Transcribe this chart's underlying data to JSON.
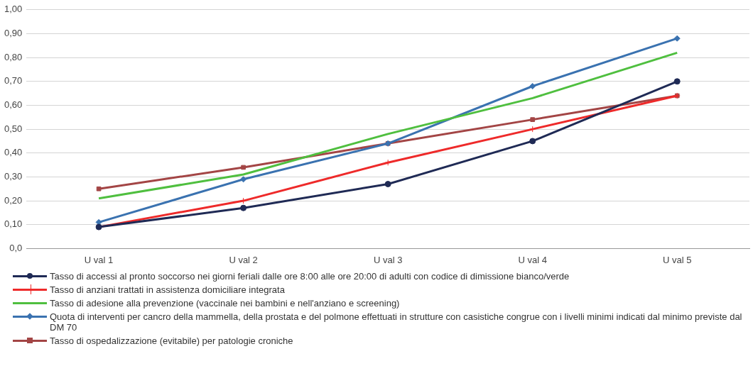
{
  "chart_data": {
    "type": "line",
    "categories": [
      "U val 1",
      "U val 2",
      "U val 3",
      "U val 4",
      "U val 5"
    ],
    "series": [
      {
        "name": "Tasso di accessi al pronto soccorso nei giorni feriali dalle ore 8:00 alle ore 20:00 di adulti con codice di dimissione bianco/verde",
        "color": "#1f2a55",
        "marker": "circle",
        "values": [
          0.09,
          0.17,
          0.27,
          0.45,
          0.7
        ]
      },
      {
        "name": "Tasso di anziani trattati in assistenza domiciliare integrata",
        "color": "#ee2a2a",
        "marker": "cross",
        "values": [
          0.09,
          0.2,
          0.36,
          0.5,
          0.64
        ]
      },
      {
        "name": "Tasso di adesione alla prevenzione (vaccinale nei bambini e nell'anziano e screening)",
        "color": "#4fbf3f",
        "marker": "none",
        "values": [
          0.21,
          0.31,
          0.48,
          0.63,
          0.82
        ]
      },
      {
        "name": "Quota di interventi per cancro della mammella, della prostata e del polmone effettuati in strutture con casistiche congrue con i livelli minimi indicati dal minimo previste dal DM 70",
        "color": "#3a72b0",
        "marker": "diamond",
        "values": [
          0.11,
          0.29,
          0.44,
          0.68,
          0.88
        ]
      },
      {
        "name": "Tasso di ospedalizzazione (evitabile) per patologie croniche",
        "color": "#a34545",
        "marker": "square",
        "values": [
          0.25,
          0.34,
          0.44,
          0.54,
          0.64
        ]
      }
    ],
    "ylim": [
      0,
      1
    ],
    "yticks": [
      {
        "value": 0,
        "label": "0,0"
      },
      {
        "value": 0.1,
        "label": "0,10"
      },
      {
        "value": 0.2,
        "label": "0,20"
      },
      {
        "value": 0.3,
        "label": "0,30"
      },
      {
        "value": 0.4,
        "label": "0,40"
      },
      {
        "value": 0.5,
        "label": "0,50"
      },
      {
        "value": 0.6,
        "label": "0,60"
      },
      {
        "value": 0.7,
        "label": "0,70"
      },
      {
        "value": 0.8,
        "label": "0,80"
      },
      {
        "value": 0.9,
        "label": "0,90"
      },
      {
        "value": 1,
        "label": "1,00"
      }
    ],
    "grid": "y",
    "legend": "bottom",
    "line_style": "solid"
  }
}
